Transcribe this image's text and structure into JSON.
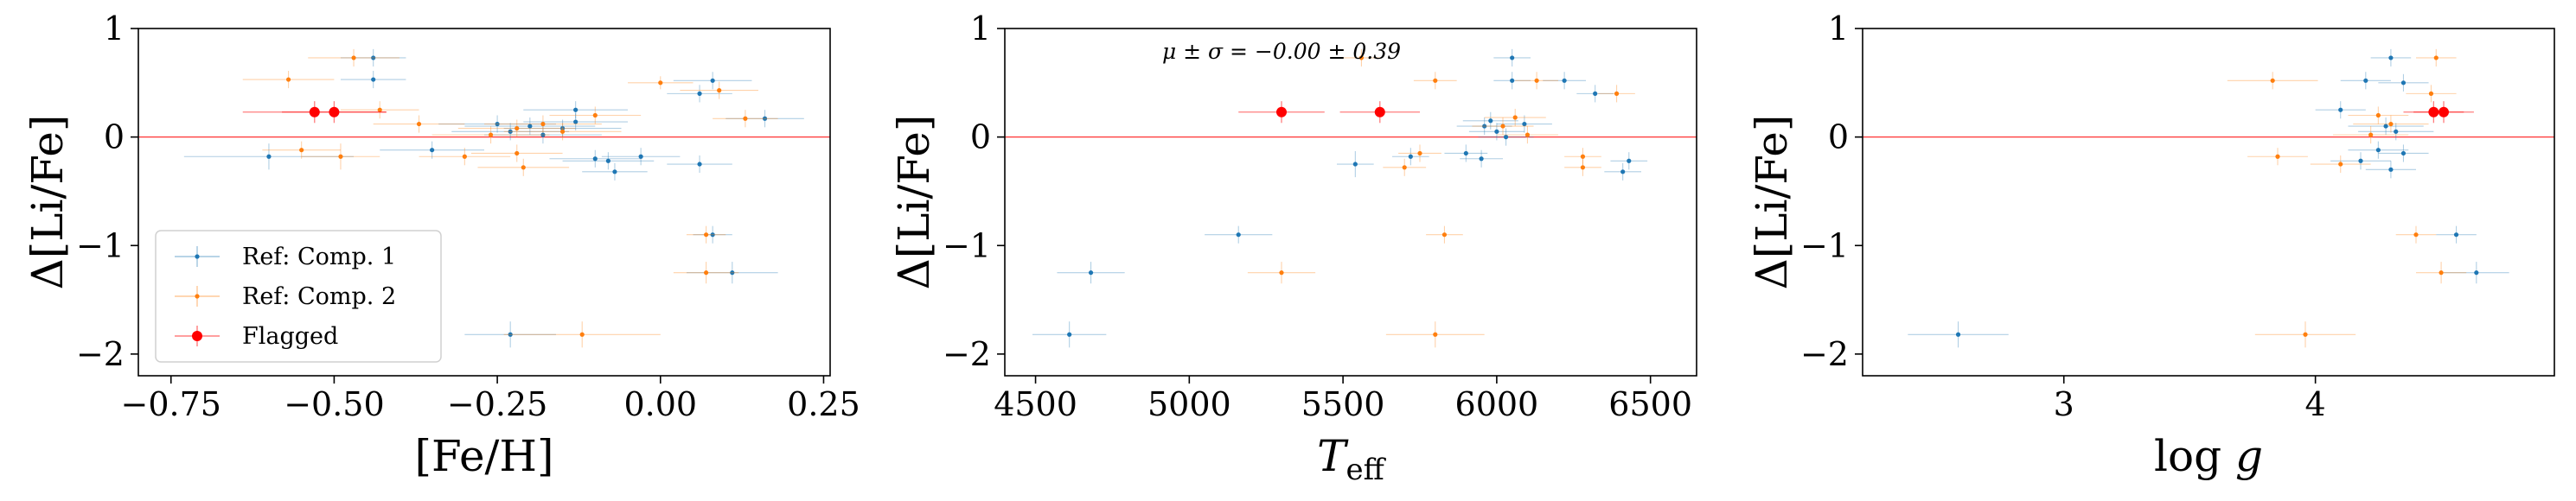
{
  "chart_data": [
    {
      "type": "scatter",
      "xlabel": "[Fe/H]",
      "ylabel": "Δ[Li/Fe]",
      "xlim": [
        -0.8,
        0.26
      ],
      "ylim": [
        -2.2,
        1.0
      ],
      "xticks": [
        -0.75,
        -0.5,
        -0.25,
        0.0,
        0.25
      ],
      "xtick_labels": [
        "−0.75",
        "−0.50",
        "−0.25",
        "0.00",
        "0.25"
      ],
      "yticks": [
        1,
        0,
        -1,
        -2
      ],
      "ytick_labels": [
        "1",
        "0",
        "−1",
        "−2"
      ],
      "reference_line_y": 0,
      "legend": {
        "placement": "lower-left",
        "entries": [
          "Ref: Comp. 1",
          "Ref: Comp. 2",
          "Flagged"
        ]
      },
      "series": [
        {
          "name": "Ref: Comp. 1",
          "color": "#1f77b4",
          "points": [
            {
              "x": -0.44,
              "y": 0.73,
              "xerr": 0.05,
              "yerr": 0.08
            },
            {
              "x": -0.44,
              "y": 0.53,
              "xerr": 0.05,
              "yerr": 0.08
            },
            {
              "x": -0.6,
              "y": -0.18,
              "xerr": 0.13,
              "yerr": 0.12
            },
            {
              "x": -0.35,
              "y": -0.12,
              "xerr": 0.08,
              "yerr": 0.08
            },
            {
              "x": -0.13,
              "y": 0.25,
              "xerr": 0.08,
              "yerr": 0.08
            },
            {
              "x": -0.1,
              "y": -0.2,
              "xerr": 0.07,
              "yerr": 0.08
            },
            {
              "x": -0.08,
              "y": -0.22,
              "xerr": 0.07,
              "yerr": 0.08
            },
            {
              "x": -0.03,
              "y": -0.18,
              "xerr": 0.06,
              "yerr": 0.08
            },
            {
              "x": -0.07,
              "y": -0.32,
              "xerr": 0.05,
              "yerr": 0.08
            },
            {
              "x": 0.06,
              "y": -0.25,
              "xerr": 0.05,
              "yerr": 0.08
            },
            {
              "x": 0.08,
              "y": 0.52,
              "xerr": 0.06,
              "yerr": 0.08
            },
            {
              "x": 0.06,
              "y": 0.4,
              "xerr": 0.05,
              "yerr": 0.08
            },
            {
              "x": 0.16,
              "y": 0.17,
              "xerr": 0.06,
              "yerr": 0.08
            },
            {
              "x": -0.15,
              "y": 0.08,
              "xerr": 0.09,
              "yerr": 0.08
            },
            {
              "x": -0.2,
              "y": 0.1,
              "xerr": 0.1,
              "yerr": 0.08
            },
            {
              "x": -0.23,
              "y": 0.05,
              "xerr": 0.09,
              "yerr": 0.08
            },
            {
              "x": -0.25,
              "y": 0.12,
              "xerr": 0.09,
              "yerr": 0.08
            },
            {
              "x": -0.18,
              "y": 0.02,
              "xerr": 0.09,
              "yerr": 0.08
            },
            {
              "x": -0.13,
              "y": 0.14,
              "xerr": 0.08,
              "yerr": 0.08
            },
            {
              "x": 0.08,
              "y": -0.9,
              "xerr": 0.03,
              "yerr": 0.08
            },
            {
              "x": 0.11,
              "y": -1.25,
              "xerr": 0.07,
              "yerr": 0.1
            },
            {
              "x": -0.23,
              "y": -1.82,
              "xerr": 0.07,
              "yerr": 0.12
            }
          ]
        },
        {
          "name": "Ref: Comp. 2",
          "color": "#ff7f0e",
          "points": [
            {
              "x": -0.47,
              "y": 0.73,
              "xerr": 0.07,
              "yerr": 0.08
            },
            {
              "x": -0.57,
              "y": 0.53,
              "xerr": 0.07,
              "yerr": 0.08
            },
            {
              "x": -0.43,
              "y": 0.25,
              "xerr": 0.06,
              "yerr": 0.08
            },
            {
              "x": -0.37,
              "y": 0.12,
              "xerr": 0.07,
              "yerr": 0.08
            },
            {
              "x": -0.55,
              "y": -0.12,
              "xerr": 0.06,
              "yerr": 0.08
            },
            {
              "x": -0.49,
              "y": -0.18,
              "xerr": 0.06,
              "yerr": 0.12
            },
            {
              "x": -0.3,
              "y": -0.18,
              "xerr": 0.07,
              "yerr": 0.08
            },
            {
              "x": -0.22,
              "y": -0.15,
              "xerr": 0.07,
              "yerr": 0.08
            },
            {
              "x": -0.21,
              "y": -0.28,
              "xerr": 0.07,
              "yerr": 0.08
            },
            {
              "x": 0.0,
              "y": 0.5,
              "xerr": 0.05,
              "yerr": 0.06
            },
            {
              "x": 0.13,
              "y": 0.17,
              "xerr": 0.05,
              "yerr": 0.08
            },
            {
              "x": 0.09,
              "y": 0.43,
              "xerr": 0.06,
              "yerr": 0.08
            },
            {
              "x": 0.07,
              "y": -0.9,
              "xerr": 0.03,
              "yerr": 0.08
            },
            {
              "x": 0.07,
              "y": -1.25,
              "xerr": 0.05,
              "yerr": 0.1
            },
            {
              "x": -0.12,
              "y": -1.82,
              "xerr": 0.12,
              "yerr": 0.12
            },
            {
              "x": -0.22,
              "y": 0.08,
              "xerr": 0.09,
              "yerr": 0.08
            },
            {
              "x": -0.18,
              "y": 0.12,
              "xerr": 0.09,
              "yerr": 0.08
            },
            {
              "x": -0.26,
              "y": 0.02,
              "xerr": 0.09,
              "yerr": 0.08
            },
            {
              "x": -0.15,
              "y": 0.05,
              "xerr": 0.09,
              "yerr": 0.08
            },
            {
              "x": -0.1,
              "y": 0.2,
              "xerr": 0.07,
              "yerr": 0.08
            }
          ]
        },
        {
          "name": "Flagged",
          "color": "#ff0000",
          "points": [
            {
              "x": -0.53,
              "y": 0.23,
              "xerr": 0.11,
              "yerr": 0.1
            },
            {
              "x": -0.5,
              "y": 0.23,
              "xerr": 0.08,
              "yerr": 0.1
            }
          ]
        }
      ]
    },
    {
      "type": "scatter",
      "xlabel": "T_eff",
      "ylabel": "Δ[Li/Fe]",
      "annotation": "μ ± σ = −0.00 ± 0.39",
      "xlim": [
        4400,
        6650
      ],
      "ylim": [
        -2.2,
        1.0
      ],
      "xticks": [
        4500,
        5000,
        5500,
        6000,
        6500
      ],
      "xtick_labels": [
        "4500",
        "5000",
        "5500",
        "6000",
        "6500"
      ],
      "yticks": [
        1,
        0,
        -1,
        -2
      ],
      "ytick_labels": [
        "1",
        "0",
        "−1",
        "−2"
      ],
      "reference_line_y": 0,
      "series": [
        {
          "name": "Ref: Comp. 1",
          "color": "#1f77b4",
          "points": [
            {
              "x": 6050,
              "y": 0.73,
              "xerr": 60,
              "yerr": 0.08
            },
            {
              "x": 6050,
              "y": 0.52,
              "xerr": 60,
              "yerr": 0.08
            },
            {
              "x": 6220,
              "y": 0.52,
              "xerr": 70,
              "yerr": 0.08
            },
            {
              "x": 6320,
              "y": 0.4,
              "xerr": 60,
              "yerr": 0.08
            },
            {
              "x": 6430,
              "y": -0.22,
              "xerr": 60,
              "yerr": 0.08
            },
            {
              "x": 6410,
              "y": -0.32,
              "xerr": 60,
              "yerr": 0.08
            },
            {
              "x": 5540,
              "y": -0.25,
              "xerr": 60,
              "yerr": 0.12
            },
            {
              "x": 5720,
              "y": -0.18,
              "xerr": 60,
              "yerr": 0.08
            },
            {
              "x": 5900,
              "y": -0.15,
              "xerr": 70,
              "yerr": 0.08
            },
            {
              "x": 5950,
              "y": -0.2,
              "xerr": 70,
              "yerr": 0.08
            },
            {
              "x": 5960,
              "y": 0.1,
              "xerr": 90,
              "yerr": 0.08
            },
            {
              "x": 6000,
              "y": 0.05,
              "xerr": 90,
              "yerr": 0.08
            },
            {
              "x": 5980,
              "y": 0.15,
              "xerr": 90,
              "yerr": 0.08
            },
            {
              "x": 6030,
              "y": 0.0,
              "xerr": 90,
              "yerr": 0.08
            },
            {
              "x": 6090,
              "y": 0.12,
              "xerr": 90,
              "yerr": 0.08
            },
            {
              "x": 5160,
              "y": -0.9,
              "xerr": 110,
              "yerr": 0.08
            },
            {
              "x": 4680,
              "y": -1.25,
              "xerr": 110,
              "yerr": 0.1
            },
            {
              "x": 4610,
              "y": -1.82,
              "xerr": 120,
              "yerr": 0.12
            }
          ]
        },
        {
          "name": "Ref: Comp. 2",
          "color": "#ff7f0e",
          "points": [
            {
              "x": 5560,
              "y": 0.73,
              "xerr": 60,
              "yerr": 0.08
            },
            {
              "x": 5800,
              "y": 0.52,
              "xerr": 70,
              "yerr": 0.08
            },
            {
              "x": 6130,
              "y": 0.52,
              "xerr": 70,
              "yerr": 0.08
            },
            {
              "x": 6390,
              "y": 0.4,
              "xerr": 60,
              "yerr": 0.08
            },
            {
              "x": 6280,
              "y": -0.18,
              "xerr": 60,
              "yerr": 0.08
            },
            {
              "x": 6280,
              "y": -0.28,
              "xerr": 60,
              "yerr": 0.08
            },
            {
              "x": 5750,
              "y": -0.15,
              "xerr": 70,
              "yerr": 0.08
            },
            {
              "x": 5700,
              "y": -0.28,
              "xerr": 70,
              "yerr": 0.08
            },
            {
              "x": 6020,
              "y": 0.1,
              "xerr": 100,
              "yerr": 0.08
            },
            {
              "x": 6060,
              "y": 0.18,
              "xerr": 100,
              "yerr": 0.08
            },
            {
              "x": 6100,
              "y": 0.02,
              "xerr": 100,
              "yerr": 0.08
            },
            {
              "x": 5830,
              "y": -0.9,
              "xerr": 60,
              "yerr": 0.08
            },
            {
              "x": 5300,
              "y": -1.25,
              "xerr": 110,
              "yerr": 0.1
            },
            {
              "x": 5800,
              "y": -1.82,
              "xerr": 160,
              "yerr": 0.12
            }
          ]
        },
        {
          "name": "Flagged",
          "color": "#ff0000",
          "points": [
            {
              "x": 5300,
              "y": 0.23,
              "xerr": 140,
              "yerr": 0.1
            },
            {
              "x": 5620,
              "y": 0.23,
              "xerr": 130,
              "yerr": 0.1
            }
          ]
        }
      ]
    },
    {
      "type": "scatter",
      "xlabel": "log g",
      "ylabel": "Δ[Li/Fe]",
      "xlim": [
        2.2,
        4.95
      ],
      "ylim": [
        -2.2,
        1.0
      ],
      "xticks": [
        3,
        4
      ],
      "xtick_labels": [
        "3",
        "4"
      ],
      "yticks": [
        1,
        0,
        -1,
        -2
      ],
      "ytick_labels": [
        "1",
        "0",
        "−1",
        "−2"
      ],
      "reference_line_y": 0,
      "series": [
        {
          "name": "Ref: Comp. 1",
          "color": "#1f77b4",
          "points": [
            {
              "x": 4.3,
              "y": 0.73,
              "xerr": 0.08,
              "yerr": 0.08
            },
            {
              "x": 4.2,
              "y": 0.52,
              "xerr": 0.1,
              "yerr": 0.08
            },
            {
              "x": 4.35,
              "y": 0.5,
              "xerr": 0.1,
              "yerr": 0.08
            },
            {
              "x": 4.1,
              "y": 0.25,
              "xerr": 0.1,
              "yerr": 0.08
            },
            {
              "x": 4.28,
              "y": 0.1,
              "xerr": 0.15,
              "yerr": 0.08
            },
            {
              "x": 4.32,
              "y": 0.05,
              "xerr": 0.15,
              "yerr": 0.08
            },
            {
              "x": 4.25,
              "y": -0.12,
              "xerr": 0.12,
              "yerr": 0.08
            },
            {
              "x": 4.18,
              "y": -0.22,
              "xerr": 0.12,
              "yerr": 0.08
            },
            {
              "x": 4.3,
              "y": -0.3,
              "xerr": 0.1,
              "yerr": 0.08
            },
            {
              "x": 4.35,
              "y": -0.15,
              "xerr": 0.1,
              "yerr": 0.08
            },
            {
              "x": 4.56,
              "y": -0.9,
              "xerr": 0.08,
              "yerr": 0.08
            },
            {
              "x": 4.64,
              "y": -1.25,
              "xerr": 0.13,
              "yerr": 0.1
            },
            {
              "x": 2.58,
              "y": -1.82,
              "xerr": 0.2,
              "yerr": 0.12
            }
          ]
        },
        {
          "name": "Ref: Comp. 2",
          "color": "#ff7f0e",
          "points": [
            {
              "x": 4.48,
              "y": 0.73,
              "xerr": 0.08,
              "yerr": 0.08
            },
            {
              "x": 3.83,
              "y": 0.52,
              "xerr": 0.18,
              "yerr": 0.08
            },
            {
              "x": 4.46,
              "y": 0.4,
              "xerr": 0.1,
              "yerr": 0.08
            },
            {
              "x": 4.25,
              "y": 0.2,
              "xerr": 0.12,
              "yerr": 0.08
            },
            {
              "x": 4.3,
              "y": 0.12,
              "xerr": 0.15,
              "yerr": 0.08
            },
            {
              "x": 4.22,
              "y": 0.02,
              "xerr": 0.15,
              "yerr": 0.08
            },
            {
              "x": 3.85,
              "y": -0.18,
              "xerr": 0.12,
              "yerr": 0.08
            },
            {
              "x": 4.1,
              "y": -0.25,
              "xerr": 0.12,
              "yerr": 0.08
            },
            {
              "x": 4.4,
              "y": -0.9,
              "xerr": 0.08,
              "yerr": 0.08
            },
            {
              "x": 4.5,
              "y": -1.25,
              "xerr": 0.1,
              "yerr": 0.1
            },
            {
              "x": 3.96,
              "y": -1.82,
              "xerr": 0.2,
              "yerr": 0.12
            }
          ]
        },
        {
          "name": "Flagged",
          "color": "#ff0000",
          "points": [
            {
              "x": 4.47,
              "y": 0.23,
              "xerr": 0.12,
              "yerr": 0.1
            },
            {
              "x": 4.51,
              "y": 0.23,
              "xerr": 0.12,
              "yerr": 0.1
            }
          ]
        }
      ]
    }
  ]
}
